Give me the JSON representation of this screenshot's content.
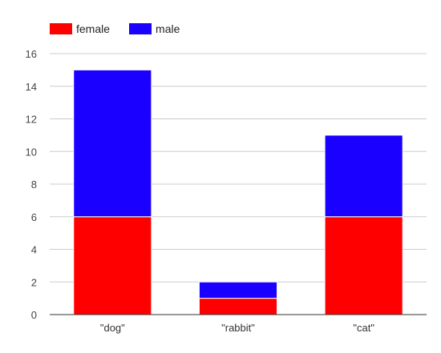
{
  "chart_data": {
    "type": "bar",
    "stacked": true,
    "categories": [
      "\"dog\"",
      "\"rabbit\"",
      "\"cat\""
    ],
    "series": [
      {
        "name": "female",
        "color": "#ff0000",
        "values": [
          6,
          1,
          6
        ]
      },
      {
        "name": "male",
        "color": "#1a00ff",
        "values": [
          9,
          1,
          5
        ]
      }
    ],
    "ylim": [
      0,
      16
    ],
    "yticks": [
      "0",
      "2",
      "4",
      "6",
      "8",
      "10",
      "12",
      "14",
      "16"
    ],
    "grid": true,
    "legend_position": "top-left",
    "title": "",
    "xlabel": "",
    "ylabel": ""
  }
}
